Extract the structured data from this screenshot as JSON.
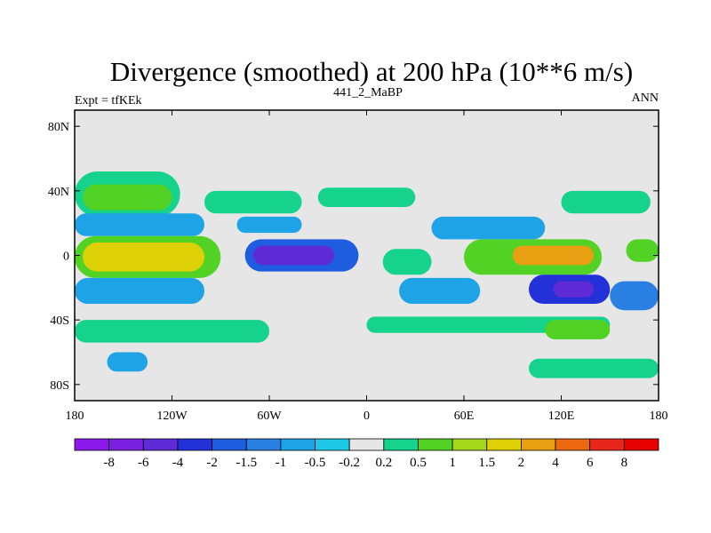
{
  "chart_data": {
    "type": "heatmap",
    "title": "Divergence (smoothed) at 200 hPa (10**6 m/s)",
    "left_string": "Expt = tfKEk",
    "center_string": "441_2_MaBP",
    "right_string": "ANN",
    "x_ticks": [
      "180",
      "120W",
      "60W",
      "0",
      "60E",
      "120E",
      "180"
    ],
    "x_tick_values": [
      -180,
      -120,
      -60,
      0,
      60,
      120,
      180
    ],
    "y_ticks": [
      "80N",
      "40N",
      "0",
      "40S",
      "80S"
    ],
    "y_tick_values": [
      80,
      40,
      0,
      -40,
      -80
    ],
    "xlim": [
      -180,
      180
    ],
    "ylim": [
      -90,
      90
    ],
    "background_color": "#e6e6e6",
    "colorbar": {
      "labels": [
        "-8",
        "-6",
        "-4",
        "-2",
        "-1.5",
        "-1",
        "-0.5",
        "-0.2",
        "0.2",
        "0.5",
        "1",
        "1.5",
        "2",
        "4",
        "6",
        "8"
      ],
      "colors": [
        "#8b1aea",
        "#7a20e0",
        "#5f2bd6",
        "#2232d8",
        "#1f5de0",
        "#2a80e2",
        "#1ea4e6",
        "#1ec8e6",
        "#e6e6e6",
        "#15d38c",
        "#52d224",
        "#a6d61c",
        "#ddd007",
        "#e8a012",
        "#ec6912",
        "#e8271c",
        "#e60000"
      ]
    },
    "regions": [
      {
        "lon_min": -180,
        "lon_max": -115,
        "lat_min": 24,
        "lat_max": 52,
        "level": 0.5
      },
      {
        "lon_min": -175,
        "lon_max": -120,
        "lat_min": 28,
        "lat_max": 44,
        "level": 1
      },
      {
        "lon_min": -100,
        "lon_max": -40,
        "lat_min": 26,
        "lat_max": 40,
        "level": 0.5
      },
      {
        "lon_min": -30,
        "lon_max": 30,
        "lat_min": 30,
        "lat_max": 42,
        "level": 0.5
      },
      {
        "lon_min": 120,
        "lon_max": 175,
        "lat_min": 26,
        "lat_max": 40,
        "level": 0.5
      },
      {
        "lon_min": -180,
        "lon_max": -100,
        "lat_min": 12,
        "lat_max": 26,
        "level": -0.5
      },
      {
        "lon_min": -80,
        "lon_max": -40,
        "lat_min": 14,
        "lat_max": 24,
        "level": -0.5
      },
      {
        "lon_min": 40,
        "lon_max": 110,
        "lat_min": 10,
        "lat_max": 24,
        "level": -0.5
      },
      {
        "lon_min": -180,
        "lon_max": -90,
        "lat_min": -14,
        "lat_max": 12,
        "level": 1
      },
      {
        "lon_min": -175,
        "lon_max": -100,
        "lat_min": -10,
        "lat_max": 8,
        "level": 2
      },
      {
        "lon_min": -75,
        "lon_max": -5,
        "lat_min": -10,
        "lat_max": 10,
        "level": -1.5
      },
      {
        "lon_min": -70,
        "lon_max": -20,
        "lat_min": -6,
        "lat_max": 6,
        "level": -4
      },
      {
        "lon_min": 10,
        "lon_max": 40,
        "lat_min": -12,
        "lat_max": 4,
        "level": 0.5
      },
      {
        "lon_min": 60,
        "lon_max": 145,
        "lat_min": -12,
        "lat_max": 10,
        "level": 1
      },
      {
        "lon_min": 90,
        "lon_max": 140,
        "lat_min": -6,
        "lat_max": 6,
        "level": 4
      },
      {
        "lon_min": 160,
        "lon_max": 180,
        "lat_min": -4,
        "lat_max": 10,
        "level": 1
      },
      {
        "lon_min": -180,
        "lon_max": -100,
        "lat_min": -30,
        "lat_max": -14,
        "level": -0.5
      },
      {
        "lon_min": 20,
        "lon_max": 70,
        "lat_min": -30,
        "lat_max": -14,
        "level": -0.5
      },
      {
        "lon_min": 100,
        "lon_max": 150,
        "lat_min": -30,
        "lat_max": -12,
        "level": -2
      },
      {
        "lon_min": 115,
        "lon_max": 140,
        "lat_min": -26,
        "lat_max": -16,
        "level": -4
      },
      {
        "lon_min": 150,
        "lon_max": 180,
        "lat_min": -34,
        "lat_max": -16,
        "level": -1
      },
      {
        "lon_min": -180,
        "lon_max": -60,
        "lat_min": -54,
        "lat_max": -40,
        "level": 0.5
      },
      {
        "lon_min": 0,
        "lon_max": 150,
        "lat_min": -48,
        "lat_max": -38,
        "level": 0.5
      },
      {
        "lon_min": 110,
        "lon_max": 150,
        "lat_min": -52,
        "lat_max": -40,
        "level": 1
      },
      {
        "lon_min": -160,
        "lon_max": -135,
        "lat_min": -72,
        "lat_max": -60,
        "level": -0.5
      },
      {
        "lon_min": 100,
        "lon_max": 180,
        "lat_min": -76,
        "lat_max": -64,
        "level": 0.5
      }
    ]
  }
}
